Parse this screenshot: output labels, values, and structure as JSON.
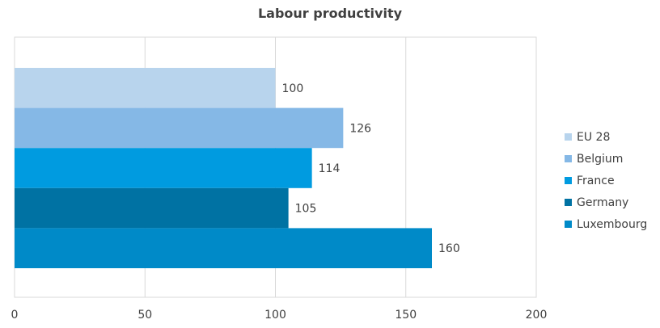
{
  "chart_data": {
    "type": "bar",
    "orientation": "horizontal",
    "title": "Labour productivity",
    "xlabel": "",
    "ylabel": "",
    "xlim": [
      0,
      200
    ],
    "xticks": [
      0,
      50,
      100,
      150,
      200
    ],
    "grid": true,
    "legend_position": "right",
    "series": [
      {
        "name": "EU 28",
        "value": 100,
        "color": "#b8d4ed"
      },
      {
        "name": "Belgium",
        "value": 126,
        "color": "#85b8e6"
      },
      {
        "name": "France",
        "value": 114,
        "color": "#009be0"
      },
      {
        "name": "Germany",
        "value": 105,
        "color": "#0072a3"
      },
      {
        "name": "Luxembourg",
        "value": 160,
        "color": "#008ac8"
      }
    ]
  }
}
